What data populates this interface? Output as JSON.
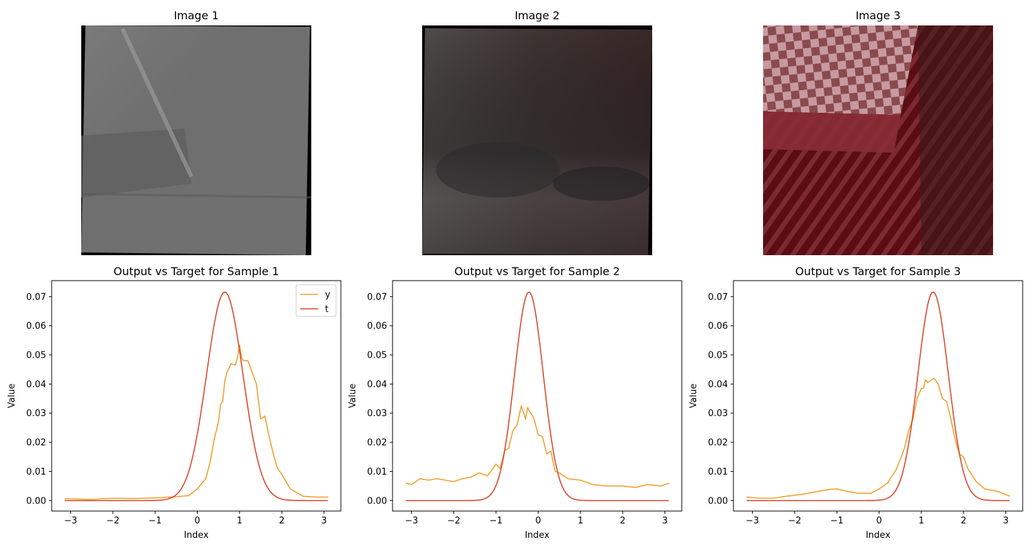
{
  "images": [
    {
      "title": "Image 1",
      "tone": "gray"
    },
    {
      "title": "Image 2",
      "tone": "dark-gray-brown"
    },
    {
      "title": "Image 3",
      "tone": "maroon"
    }
  ],
  "chart_data": [
    {
      "type": "line",
      "title": "Output vs Target for Sample 1",
      "xlabel": "Index",
      "ylabel": "Value",
      "xlim": [
        -3.45,
        3.4
      ],
      "ylim": [
        -0.0036,
        0.0755
      ],
      "xticks": [
        -3,
        -2,
        -1,
        0,
        1,
        2,
        3
      ],
      "yticks": [
        0.0,
        0.01,
        0.02,
        0.03,
        0.04,
        0.05,
        0.06,
        0.07
      ],
      "legend": "top-right",
      "series": [
        {
          "name": "y",
          "color": "#f0a030",
          "x": [
            -3.14,
            -2.5,
            -2.0,
            -1.5,
            -1.0,
            -0.5,
            -0.2,
            0.0,
            0.1,
            0.2,
            0.3,
            0.4,
            0.5,
            0.55,
            0.6,
            0.65,
            0.7,
            0.8,
            0.9,
            0.95,
            1.0,
            1.05,
            1.1,
            1.2,
            1.3,
            1.4,
            1.5,
            1.6,
            1.7,
            1.8,
            1.9,
            2.0,
            2.2,
            2.5,
            2.8,
            3.1
          ],
          "y": [
            0.0006,
            0.0004,
            0.0008,
            0.0007,
            0.0009,
            0.0013,
            0.0017,
            0.004,
            0.0058,
            0.0075,
            0.013,
            0.021,
            0.027,
            0.033,
            0.034,
            0.041,
            0.044,
            0.047,
            0.0465,
            0.049,
            0.0535,
            0.049,
            0.048,
            0.048,
            0.044,
            0.04,
            0.028,
            0.029,
            0.022,
            0.016,
            0.011,
            0.009,
            0.004,
            0.0015,
            0.0012,
            0.0012
          ]
        },
        {
          "name": "t",
          "color": "#d9482b",
          "gauss": {
            "mu": 0.65,
            "sigma": 0.43,
            "peak": 0.0716
          }
        }
      ]
    },
    {
      "type": "line",
      "title": "Output vs Target for Sample 2",
      "xlabel": "Index",
      "ylabel": "Value",
      "xlim": [
        -3.45,
        3.4
      ],
      "ylim": [
        -0.0036,
        0.0755
      ],
      "xticks": [
        -3,
        -2,
        -1,
        0,
        1,
        2,
        3
      ],
      "yticks": [
        0.0,
        0.01,
        0.02,
        0.03,
        0.04,
        0.05,
        0.06,
        0.07
      ],
      "series": [
        {
          "name": "y",
          "color": "#f0a030",
          "x": [
            -3.14,
            -3.0,
            -2.8,
            -2.6,
            -2.4,
            -2.2,
            -2.0,
            -1.8,
            -1.6,
            -1.4,
            -1.2,
            -1.0,
            -0.9,
            -0.8,
            -0.7,
            -0.6,
            -0.5,
            -0.4,
            -0.3,
            -0.25,
            -0.2,
            -0.15,
            -0.1,
            0.0,
            0.1,
            0.2,
            0.3,
            0.4,
            0.5,
            0.7,
            1.0,
            1.3,
            1.6,
            2.0,
            2.3,
            2.6,
            2.9,
            3.1
          ],
          "y": [
            0.006,
            0.0055,
            0.0075,
            0.007,
            0.0075,
            0.007,
            0.0065,
            0.0075,
            0.008,
            0.0095,
            0.0085,
            0.0125,
            0.011,
            0.017,
            0.018,
            0.024,
            0.026,
            0.0325,
            0.028,
            0.032,
            0.0305,
            0.0295,
            0.028,
            0.0225,
            0.022,
            0.016,
            0.017,
            0.01,
            0.0095,
            0.0075,
            0.007,
            0.0055,
            0.005,
            0.005,
            0.0045,
            0.0055,
            0.005,
            0.006
          ]
        },
        {
          "name": "t",
          "color": "#d9482b",
          "gauss": {
            "mu": -0.22,
            "sigma": 0.34,
            "peak": 0.0716
          }
        }
      ]
    },
    {
      "type": "line",
      "title": "Output vs Target for Sample 3",
      "xlabel": "Index",
      "ylabel": "Value",
      "xlim": [
        -3.45,
        3.4
      ],
      "ylim": [
        -0.0036,
        0.0755
      ],
      "xticks": [
        -3,
        -2,
        -1,
        0,
        1,
        2,
        3
      ],
      "yticks": [
        0.0,
        0.01,
        0.02,
        0.03,
        0.04,
        0.05,
        0.06,
        0.07
      ],
      "series": [
        {
          "name": "y",
          "color": "#f0a030",
          "x": [
            -3.14,
            -2.8,
            -2.5,
            -2.2,
            -2.0,
            -1.8,
            -1.5,
            -1.2,
            -1.0,
            -0.8,
            -0.5,
            -0.2,
            0.0,
            0.2,
            0.4,
            0.5,
            0.6,
            0.7,
            0.8,
            0.9,
            1.0,
            1.05,
            1.1,
            1.15,
            1.2,
            1.3,
            1.4,
            1.5,
            1.6,
            1.7,
            1.8,
            1.9,
            2.0,
            2.1,
            2.3,
            2.5,
            2.8,
            3.1
          ],
          "y": [
            0.0012,
            0.0008,
            0.0008,
            0.0015,
            0.0018,
            0.0022,
            0.003,
            0.0038,
            0.004,
            0.0033,
            0.0025,
            0.0025,
            0.004,
            0.006,
            0.0105,
            0.014,
            0.018,
            0.024,
            0.028,
            0.035,
            0.0385,
            0.0385,
            0.0415,
            0.0405,
            0.041,
            0.042,
            0.04,
            0.035,
            0.034,
            0.028,
            0.021,
            0.016,
            0.015,
            0.011,
            0.0065,
            0.004,
            0.0032,
            0.0015
          ]
        },
        {
          "name": "t",
          "color": "#d9482b",
          "gauss": {
            "mu": 1.28,
            "sigma": 0.36,
            "peak": 0.0716
          }
        }
      ]
    }
  ]
}
